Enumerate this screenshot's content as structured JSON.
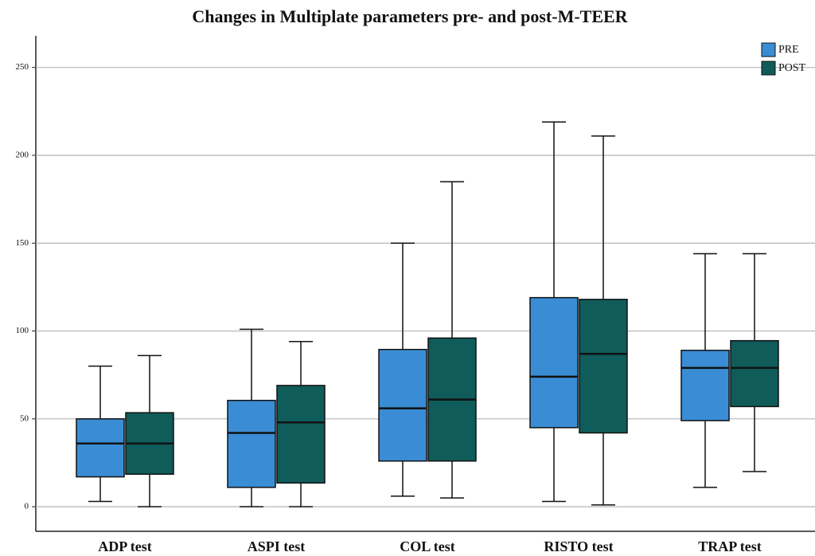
{
  "chart_data": {
    "type": "box",
    "title": "Changes in Multiplate parameters pre- and post-M-TEER",
    "categories": [
      "ADP test",
      "ASPI test",
      "COL test",
      "RISTO test",
      "TRAP test"
    ],
    "series": [
      {
        "name": "PRE",
        "color": "#3a8dd4",
        "values": [
          [
            3,
            50,
            36,
            17,
            80
          ],
          [
            0,
            60.5,
            42,
            11,
            101
          ],
          [
            6,
            89.5,
            56,
            26,
            150
          ],
          [
            3,
            119,
            74,
            45,
            219
          ],
          [
            11,
            89,
            79,
            49,
            144
          ]
        ]
      },
      {
        "name": "POST",
        "color": "#0f5c5a",
        "values": [
          [
            0,
            53.5,
            36,
            18.5,
            86
          ],
          [
            0,
            69,
            48,
            13.5,
            94
          ],
          [
            5,
            96,
            61,
            26,
            185
          ],
          [
            1,
            118,
            87,
            42,
            211
          ],
          [
            20,
            94.5,
            79,
            57,
            144
          ]
        ]
      }
    ],
    "value_order": [
      "min",
      "q3",
      "median",
      "q1",
      "max"
    ],
    "ylim": [
      -14,
      268
    ],
    "yticks": [
      0,
      50,
      100,
      150,
      200,
      250
    ],
    "grid": true,
    "legend": "top-right"
  }
}
